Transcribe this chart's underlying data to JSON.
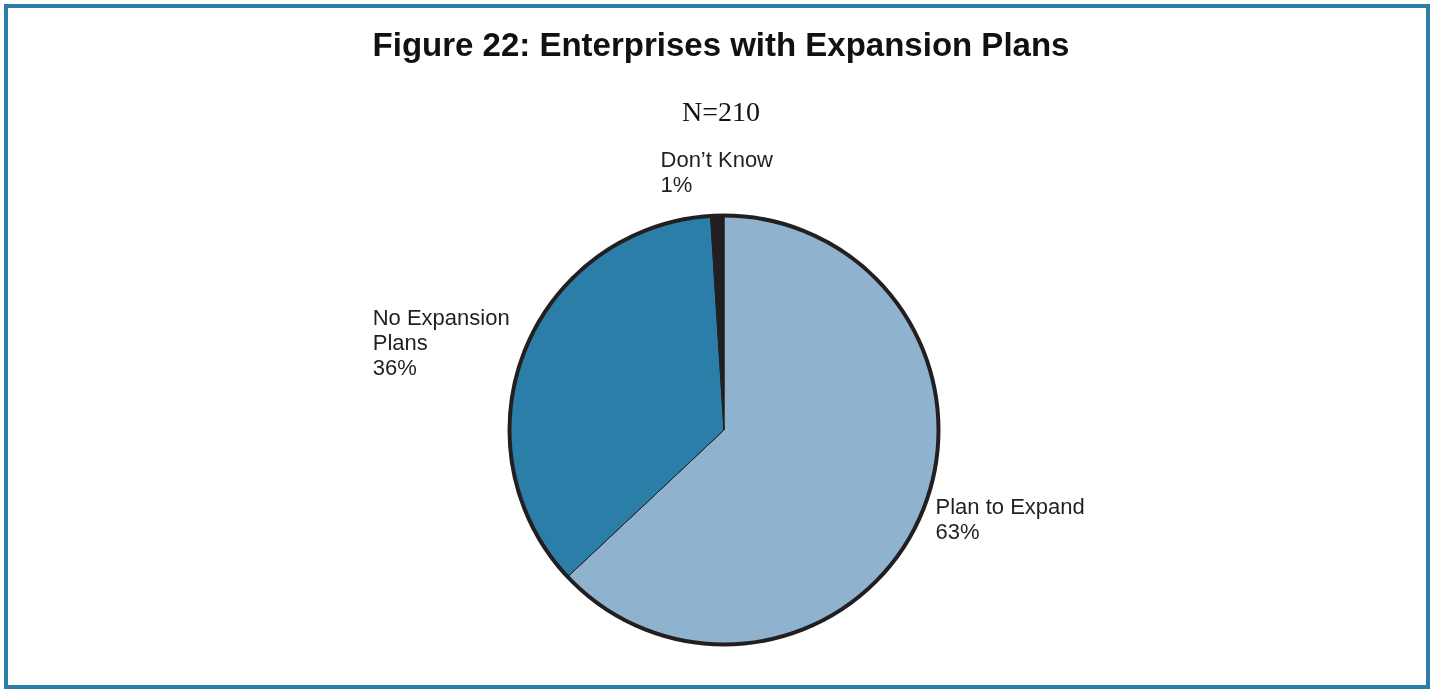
{
  "chart_data": {
    "type": "pie",
    "title": "Figure 22: Enterprises with Expansion Plans",
    "subtitle": "N=210",
    "categories": [
      "Plan to Expand",
      "No Expansion Plans",
      "Don’t Know"
    ],
    "values": [
      63,
      36,
      1
    ],
    "colors": [
      "#8fb3cf",
      "#2b7ea8",
      "#231f20"
    ],
    "value_labels": [
      "63%",
      "36%",
      "1%"
    ],
    "legend": false
  }
}
